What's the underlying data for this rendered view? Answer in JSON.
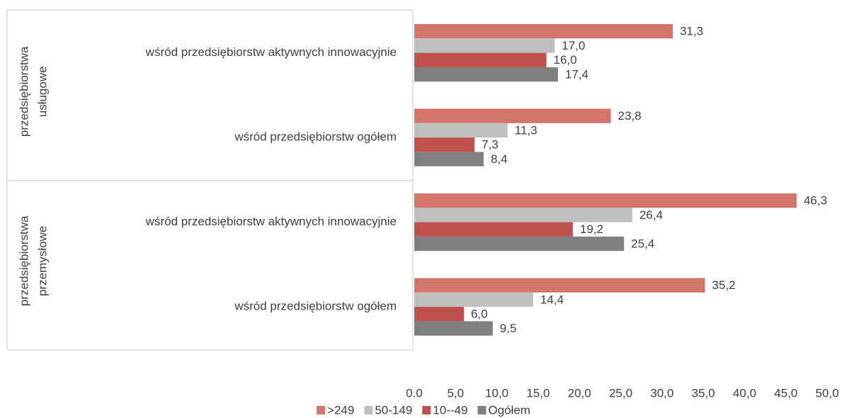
{
  "chart_data": {
    "type": "bar",
    "orientation": "horizontal",
    "groups": [
      {
        "label": [
          "przedsiębiorstwa",
          "usługowe"
        ]
      },
      {
        "label": [
          "przedsiębiorstwa",
          "przemysłowe"
        ]
      }
    ],
    "categories": [
      "wśród przedsiębiorstw aktywnych innowacyjnie",
      "wśród przedsiębiorstw ogółem",
      "wśród przedsiębiorstw aktywnych innowacyjnie",
      "wśród przedsiębiorstw ogółem"
    ],
    "series": [
      {
        "name": ">249",
        "color": "#d4756b",
        "values": [
          31.3,
          23.8,
          46.3,
          35.2
        ],
        "value_labels": [
          "31,3",
          "23,8",
          "46,3",
          "35,2"
        ]
      },
      {
        "name": "50-149",
        "color": "#bfbfbf",
        "values": [
          17.0,
          11.3,
          26.4,
          14.4
        ],
        "value_labels": [
          "17,0",
          "11,3",
          "26,4",
          "14,4"
        ]
      },
      {
        "name": "10--49",
        "color": "#c0504d",
        "values": [
          16.0,
          7.3,
          19.2,
          6.0
        ],
        "value_labels": [
          "16,0",
          "7,3",
          "19,2",
          "6,0"
        ]
      },
      {
        "name": "Ogółem",
        "color": "#7f7f7f",
        "values": [
          17.4,
          8.4,
          25.4,
          9.5
        ],
        "value_labels": [
          "17,4",
          "8,4",
          "25,4",
          "9,5"
        ]
      }
    ],
    "xlim": [
      0,
      50
    ],
    "xticks": [
      {
        "value": 0,
        "label": "0.0"
      },
      {
        "value": 5,
        "label": "5,0"
      },
      {
        "value": 10,
        "label": "10,0"
      },
      {
        "value": 15,
        "label": "15,0"
      },
      {
        "value": 20,
        "label": "20,0"
      },
      {
        "value": 25,
        "label": "25,0"
      },
      {
        "value": 30,
        "label": "30,0"
      },
      {
        "value": 35,
        "label": "35,0"
      },
      {
        "value": 40,
        "label": "40,0"
      },
      {
        "value": 45,
        "label": "45,0"
      },
      {
        "value": 50,
        "label": "50,0"
      }
    ],
    "grid": false,
    "legend": "bottom"
  }
}
